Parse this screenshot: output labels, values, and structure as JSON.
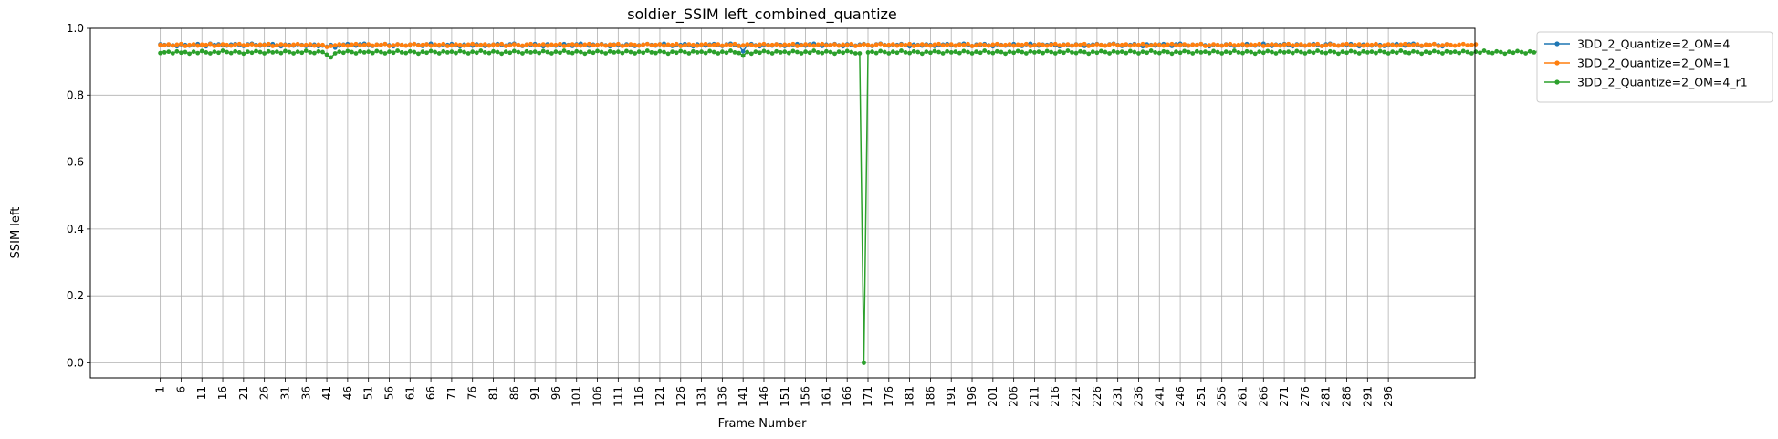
{
  "chart_data": {
    "type": "line",
    "title": "soldier_SSIM left_combined_quantize",
    "xlabel": "Frame Number",
    "ylabel": "SSIM left",
    "xlim": [
      -15.8,
      316.8
    ],
    "ylim": [
      -0.045,
      1.0
    ],
    "x_ticks": [
      1,
      6,
      11,
      16,
      21,
      26,
      31,
      36,
      41,
      46,
      51,
      56,
      61,
      66,
      71,
      76,
      81,
      86,
      91,
      96,
      101,
      106,
      111,
      116,
      121,
      126,
      131,
      136,
      141,
      146,
      151,
      156,
      161,
      166,
      171,
      176,
      181,
      186,
      191,
      196,
      201,
      206,
      211,
      216,
      221,
      226,
      231,
      236,
      241,
      246,
      251,
      256,
      261,
      266,
      271,
      276,
      281,
      286,
      291,
      296
    ],
    "y_ticks": [
      0.0,
      0.2,
      0.4,
      0.6,
      0.8,
      1.0
    ],
    "y_tick_labels": [
      "0.0",
      "0.2",
      "0.4",
      "0.6",
      "0.8",
      "1.0"
    ],
    "grid": true,
    "legend_position": "outside-upper-right",
    "x_start": 1,
    "series": [
      {
        "name": "3DD_2_Quantize=2_OM=4",
        "color": "#1f77b4",
        "marker": "circle",
        "values": [
          0.952,
          0.95,
          0.951,
          0.949,
          0.946,
          0.952,
          0.95,
          0.948,
          0.951,
          0.953,
          0.949,
          0.946,
          0.954,
          0.95,
          0.952,
          0.949,
          0.948,
          0.951,
          0.953,
          0.95,
          0.947,
          0.952,
          0.954,
          0.95,
          0.948,
          0.951,
          0.95,
          0.953,
          0.949,
          0.946,
          0.951,
          0.95,
          0.948,
          0.952,
          0.95,
          0.947,
          0.949,
          0.951,
          0.946,
          0.948,
          0.945,
          0.95,
          0.942,
          0.948,
          0.951,
          0.953,
          0.95,
          0.948,
          0.952,
          0.954,
          0.95,
          0.947,
          0.951,
          0.95,
          0.953,
          0.949,
          0.946,
          0.952,
          0.95,
          0.948,
          0.951,
          0.953,
          0.95,
          0.947,
          0.952,
          0.954,
          0.95,
          0.948,
          0.951,
          0.95,
          0.953,
          0.949,
          0.946,
          0.951,
          0.95,
          0.948,
          0.952,
          0.95,
          0.947,
          0.949,
          0.951,
          0.953,
          0.95,
          0.948,
          0.952,
          0.954,
          0.95,
          0.947,
          0.951,
          0.95,
          0.953,
          0.949,
          0.946,
          0.952,
          0.95,
          0.948,
          0.951,
          0.953,
          0.95,
          0.947,
          0.952,
          0.954,
          0.95,
          0.948,
          0.951,
          0.95,
          0.953,
          0.949,
          0.946,
          0.951,
          0.95,
          0.948,
          0.952,
          0.95,
          0.947,
          0.949,
          0.951,
          0.953,
          0.95,
          0.948,
          0.952,
          0.954,
          0.95,
          0.947,
          0.951,
          0.95,
          0.953,
          0.949,
          0.946,
          0.952,
          0.95,
          0.948,
          0.951,
          0.953,
          0.95,
          0.947,
          0.952,
          0.954,
          0.95,
          0.948,
          0.931,
          0.95,
          0.953,
          0.949,
          0.946,
          0.951,
          0.95,
          0.948,
          0.952,
          0.95,
          0.947,
          0.949,
          0.951,
          0.953,
          0.95,
          0.948,
          0.952,
          0.954,
          0.95,
          0.947,
          0.951,
          0.95,
          0.953,
          0.949,
          0.946,
          0.952,
          0.95,
          0.948,
          0.951,
          0.953,
          0.95,
          0.947,
          0.952,
          0.954,
          0.95,
          0.948,
          0.951,
          0.95,
          0.953,
          0.949,
          0.946,
          0.951,
          0.95,
          0.948,
          0.952,
          0.95,
          0.947,
          0.949,
          0.951,
          0.953,
          0.95,
          0.948,
          0.952,
          0.954,
          0.95,
          0.947,
          0.951,
          0.95,
          0.953,
          0.949,
          0.946,
          0.952,
          0.95,
          0.948,
          0.951,
          0.953,
          0.95,
          0.947,
          0.952,
          0.954,
          0.95,
          0.948,
          0.951,
          0.95,
          0.953,
          0.949,
          0.946,
          0.951,
          0.95,
          0.948,
          0.952,
          0.95,
          0.947,
          0.949,
          0.951,
          0.953,
          0.95,
          0.948,
          0.952,
          0.954,
          0.95,
          0.947,
          0.951,
          0.95,
          0.953,
          0.949,
          0.946,
          0.952,
          0.95,
          0.948,
          0.951,
          0.953,
          0.95,
          0.947,
          0.952,
          0.954,
          0.95,
          0.948,
          0.951,
          0.95,
          0.953,
          0.949,
          0.946,
          0.951,
          0.95,
          0.948,
          0.952,
          0.95,
          0.947,
          0.949,
          0.951,
          0.953,
          0.95,
          0.948,
          0.952,
          0.954,
          0.95,
          0.947,
          0.951,
          0.95,
          0.953,
          0.949,
          0.946,
          0.952,
          0.95,
          0.948,
          0.951,
          0.953,
          0.95,
          0.947,
          0.952,
          0.954,
          0.95,
          0.948,
          0.951,
          0.95,
          0.953,
          0.949,
          0.946,
          0.951,
          0.95,
          0.948,
          0.952,
          0.95,
          0.947,
          0.949,
          0.951,
          0.953,
          0.95,
          0.948,
          0.952,
          0.954,
          0.95,
          0.947,
          0.951,
          0.95,
          0.953,
          0.949,
          0.946,
          0.952
        ]
      },
      {
        "name": "3DD_2_Quantize=2_OM=1",
        "color": "#ff7f0e",
        "marker": "circle",
        "values": [
          0.95,
          0.949,
          0.952,
          0.948,
          0.951,
          0.953,
          0.947,
          0.95,
          0.952,
          0.948,
          0.951,
          0.95,
          0.953,
          0.947,
          0.949,
          0.952,
          0.95,
          0.948,
          0.951,
          0.953,
          0.949,
          0.95,
          0.952,
          0.948,
          0.951,
          0.95,
          0.953,
          0.947,
          0.949,
          0.952,
          0.95,
          0.948,
          0.951,
          0.953,
          0.949,
          0.95,
          0.952,
          0.948,
          0.951,
          0.95,
          0.944,
          0.947,
          0.949,
          0.952,
          0.95,
          0.948,
          0.951,
          0.953,
          0.949,
          0.95,
          0.952,
          0.948,
          0.951,
          0.95,
          0.953,
          0.947,
          0.949,
          0.952,
          0.95,
          0.948,
          0.951,
          0.953,
          0.949,
          0.95,
          0.952,
          0.948,
          0.951,
          0.95,
          0.953,
          0.947,
          0.949,
          0.952,
          0.95,
          0.948,
          0.951,
          0.953,
          0.949,
          0.95,
          0.952,
          0.948,
          0.951,
          0.95,
          0.953,
          0.947,
          0.949,
          0.952,
          0.95,
          0.948,
          0.951,
          0.953,
          0.949,
          0.95,
          0.952,
          0.948,
          0.951,
          0.95,
          0.953,
          0.947,
          0.949,
          0.952,
          0.95,
          0.948,
          0.951,
          0.953,
          0.949,
          0.95,
          0.952,
          0.948,
          0.951,
          0.95,
          0.953,
          0.947,
          0.949,
          0.952,
          0.95,
          0.948,
          0.951,
          0.953,
          0.949,
          0.95,
          0.952,
          0.948,
          0.951,
          0.95,
          0.953,
          0.947,
          0.949,
          0.952,
          0.95,
          0.948,
          0.951,
          0.953,
          0.949,
          0.95,
          0.952,
          0.948,
          0.951,
          0.95,
          0.953,
          0.947,
          0.949,
          0.952,
          0.95,
          0.948,
          0.951,
          0.953,
          0.949,
          0.95,
          0.952,
          0.948,
          0.951,
          0.95,
          0.953,
          0.947,
          0.949,
          0.952,
          0.95,
          0.948,
          0.951,
          0.953,
          0.949,
          0.95,
          0.952,
          0.948,
          0.951,
          0.95,
          0.953,
          0.947,
          0.949,
          0.952,
          0.95,
          0.948,
          0.951,
          0.953,
          0.949,
          0.95,
          0.952,
          0.948,
          0.951,
          0.95,
          0.953,
          0.947,
          0.949,
          0.952,
          0.95,
          0.948,
          0.951,
          0.953,
          0.949,
          0.95,
          0.952,
          0.948,
          0.951,
          0.95,
          0.953,
          0.947,
          0.949,
          0.952,
          0.95,
          0.948,
          0.951,
          0.953,
          0.949,
          0.95,
          0.952,
          0.948,
          0.951,
          0.95,
          0.953,
          0.947,
          0.949,
          0.952,
          0.95,
          0.948,
          0.951,
          0.953,
          0.949,
          0.95,
          0.952,
          0.948,
          0.951,
          0.95,
          0.953,
          0.947,
          0.949,
          0.952,
          0.95,
          0.948,
          0.951,
          0.953,
          0.949,
          0.95,
          0.952,
          0.948,
          0.951,
          0.95,
          0.953,
          0.947,
          0.949,
          0.952,
          0.95,
          0.948,
          0.951,
          0.953,
          0.949,
          0.95,
          0.952,
          0.948,
          0.951,
          0.95,
          0.953,
          0.947,
          0.949,
          0.952,
          0.95,
          0.948,
          0.951,
          0.953,
          0.949,
          0.95,
          0.952,
          0.948,
          0.951,
          0.95,
          0.953,
          0.947,
          0.949,
          0.952,
          0.95,
          0.948,
          0.951,
          0.953,
          0.949,
          0.95,
          0.952,
          0.948,
          0.951,
          0.95,
          0.953,
          0.947,
          0.949,
          0.952,
          0.95,
          0.948,
          0.951,
          0.953,
          0.949,
          0.95,
          0.952,
          0.948,
          0.951,
          0.95,
          0.953,
          0.947,
          0.949,
          0.952,
          0.95,
          0.948,
          0.951,
          0.953,
          0.949,
          0.95,
          0.952,
          0.948,
          0.951,
          0.95,
          0.953,
          0.947,
          0.949,
          0.952,
          0.95,
          0.948,
          0.951,
          0.953,
          0.949,
          0.95,
          0.952
        ]
      },
      {
        "name": "3DD_2_Quantize=2_OM=4_r1",
        "color": "#2ca02c",
        "marker": "circle",
        "values": [
          0.926,
          0.928,
          0.93,
          0.925,
          0.931,
          0.927,
          0.929,
          0.924,
          0.93,
          0.926,
          0.932,
          0.928,
          0.925,
          0.93,
          0.927,
          0.933,
          0.929,
          0.926,
          0.931,
          0.928,
          0.924,
          0.93,
          0.927,
          0.932,
          0.929,
          0.925,
          0.931,
          0.928,
          0.93,
          0.926,
          0.932,
          0.929,
          0.925,
          0.93,
          0.927,
          0.933,
          0.928,
          0.926,
          0.931,
          0.929,
          0.921,
          0.913,
          0.925,
          0.93,
          0.927,
          0.932,
          0.929,
          0.925,
          0.931,
          0.928,
          0.93,
          0.926,
          0.932,
          0.929,
          0.925,
          0.93,
          0.927,
          0.933,
          0.928,
          0.926,
          0.931,
          0.929,
          0.924,
          0.93,
          0.927,
          0.932,
          0.929,
          0.925,
          0.931,
          0.928,
          0.93,
          0.926,
          0.932,
          0.929,
          0.925,
          0.93,
          0.927,
          0.933,
          0.928,
          0.926,
          0.931,
          0.929,
          0.924,
          0.93,
          0.927,
          0.932,
          0.929,
          0.925,
          0.931,
          0.928,
          0.93,
          0.926,
          0.932,
          0.929,
          0.925,
          0.93,
          0.927,
          0.933,
          0.928,
          0.926,
          0.931,
          0.929,
          0.924,
          0.93,
          0.927,
          0.932,
          0.929,
          0.925,
          0.931,
          0.928,
          0.93,
          0.926,
          0.932,
          0.929,
          0.925,
          0.93,
          0.927,
          0.933,
          0.928,
          0.926,
          0.931,
          0.929,
          0.924,
          0.93,
          0.927,
          0.932,
          0.929,
          0.925,
          0.931,
          0.928,
          0.93,
          0.926,
          0.932,
          0.929,
          0.925,
          0.93,
          0.927,
          0.933,
          0.928,
          0.926,
          0.918,
          0.929,
          0.924,
          0.93,
          0.927,
          0.932,
          0.929,
          0.925,
          0.931,
          0.928,
          0.93,
          0.926,
          0.932,
          0.929,
          0.925,
          0.93,
          0.927,
          0.933,
          0.928,
          0.926,
          0.931,
          0.929,
          0.924,
          0.93,
          0.927,
          0.932,
          0.929,
          0.925,
          0.925,
          0.0,
          0.928,
          0.93,
          0.926,
          0.932,
          0.929,
          0.925,
          0.93,
          0.927,
          0.933,
          0.928,
          0.926,
          0.931,
          0.929,
          0.924,
          0.93,
          0.927,
          0.932,
          0.929,
          0.925,
          0.931,
          0.928,
          0.93,
          0.926,
          0.932,
          0.929,
          0.925,
          0.93,
          0.927,
          0.933,
          0.928,
          0.926,
          0.931,
          0.929,
          0.924,
          0.93,
          0.927,
          0.932,
          0.929,
          0.925,
          0.931,
          0.928,
          0.93,
          0.926,
          0.932,
          0.929,
          0.925,
          0.93,
          0.927,
          0.933,
          0.928,
          0.926,
          0.931,
          0.929,
          0.924,
          0.93,
          0.927,
          0.932,
          0.929,
          0.925,
          0.931,
          0.928,
          0.93,
          0.926,
          0.932,
          0.929,
          0.925,
          0.93,
          0.927,
          0.933,
          0.928,
          0.926,
          0.931,
          0.929,
          0.924,
          0.93,
          0.927,
          0.932,
          0.929,
          0.925,
          0.931,
          0.928,
          0.93,
          0.926,
          0.932,
          0.929,
          0.925,
          0.93,
          0.927,
          0.933,
          0.928,
          0.926,
          0.931,
          0.929,
          0.924,
          0.93,
          0.927,
          0.932,
          0.929,
          0.925,
          0.931,
          0.928,
          0.93,
          0.926,
          0.932,
          0.929,
          0.925,
          0.93,
          0.927,
          0.933,
          0.928,
          0.926,
          0.931,
          0.929,
          0.924,
          0.93,
          0.927,
          0.932,
          0.929,
          0.925,
          0.931,
          0.928,
          0.93,
          0.926,
          0.932,
          0.929,
          0.925,
          0.93,
          0.927,
          0.933,
          0.928,
          0.926,
          0.931,
          0.929,
          0.924,
          0.93,
          0.927,
          0.932,
          0.929,
          0.925,
          0.931,
          0.928,
          0.93,
          0.926,
          0.932,
          0.929,
          0.925,
          0.93,
          0.927,
          0.933,
          0.928,
          0.926,
          0.931,
          0.929,
          0.924,
          0.93,
          0.927,
          0.932,
          0.929,
          0.925,
          0.931,
          0.928,
          0.93,
          0.926,
          0.932,
          0.929,
          0.925,
          0.93,
          0.927,
          0.933,
          0.928,
          0.926,
          0.931,
          0.92
        ]
      }
    ]
  }
}
